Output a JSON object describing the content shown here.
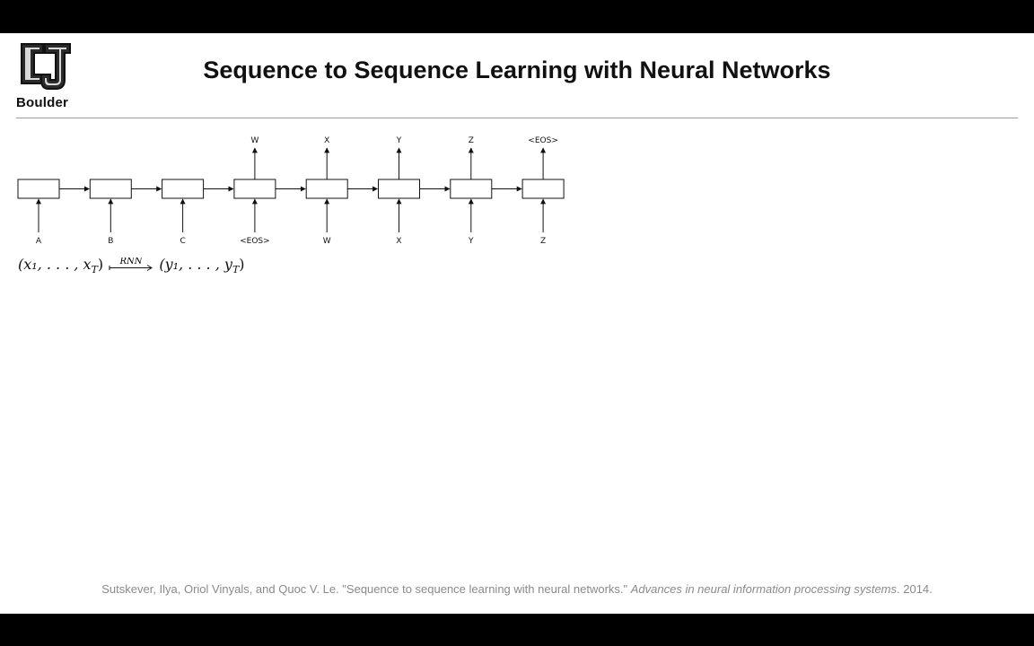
{
  "header": {
    "title": "Sequence to Sequence Learning with Neural Networks",
    "logo_label": "Boulder"
  },
  "diagram": {
    "input_labels": [
      "A",
      "B",
      "C",
      "<EOS>",
      "W",
      "X",
      "Y",
      "Z"
    ],
    "output_labels": [
      "",
      "",
      "",
      "W",
      "X",
      "Y",
      "Z",
      "<EOS>"
    ],
    "arrow_label": "RNN"
  },
  "formula": {
    "left": "(x₁, . . . , x",
    "left_sub": "T",
    "left_close": ")",
    "right": "(y₁, . . . , y",
    "right_sub": "T",
    "right_close": ")"
  },
  "citation": {
    "text": "Sutskever, Ilya, Oriol Vinyals, and Quoc V. Le. \"Sequence to sequence learning with neural networks.\"",
    "venue": "Advances in neural information processing systems",
    "year": ". 2014."
  }
}
